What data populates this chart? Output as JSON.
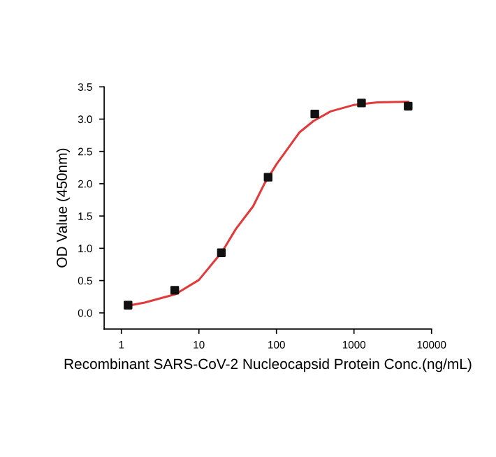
{
  "chart_data": {
    "type": "scatter",
    "xlabel": "Recombinant SARS-CoV-2 Nucleocapsid Protein Conc.(ng/mL)",
    "ylabel": "OD Value (450nm)",
    "log": "x",
    "xlim": [
      0.6,
      10000
    ],
    "xticks": [
      1,
      10,
      100,
      1000,
      10000
    ],
    "ylim": [
      -0.25,
      3.5
    ],
    "yticks": [
      {
        "value": 0,
        "label": "0.0"
      },
      0.5,
      {
        "value": 1,
        "label": "1.0"
      },
      1.5,
      {
        "value": 2,
        "label": "2.0"
      },
      2.5,
      {
        "value": 3,
        "label": "3.0"
      },
      3.5
    ],
    "grid": false,
    "legend": false,
    "series": [
      {
        "marker": "square",
        "color": "#111111",
        "x": [
          1.22,
          4.88,
          19.5,
          78.1,
          312.5,
          1250,
          5000
        ],
        "values": [
          0.12,
          0.35,
          0.93,
          2.1,
          3.08,
          3.25,
          3.2
        ]
      },
      {
        "type": "line",
        "marker": "none",
        "line_style": "solid",
        "color": "#e03a3a",
        "x": [
          1.2,
          2,
          5,
          10,
          20,
          30,
          50,
          70,
          100,
          200,
          300,
          500,
          1000,
          2000,
          5000
        ],
        "values": [
          0.11,
          0.16,
          0.29,
          0.51,
          0.95,
          1.3,
          1.65,
          2.0,
          2.3,
          2.8,
          2.97,
          3.12,
          3.22,
          3.26,
          3.27
        ]
      }
    ]
  }
}
